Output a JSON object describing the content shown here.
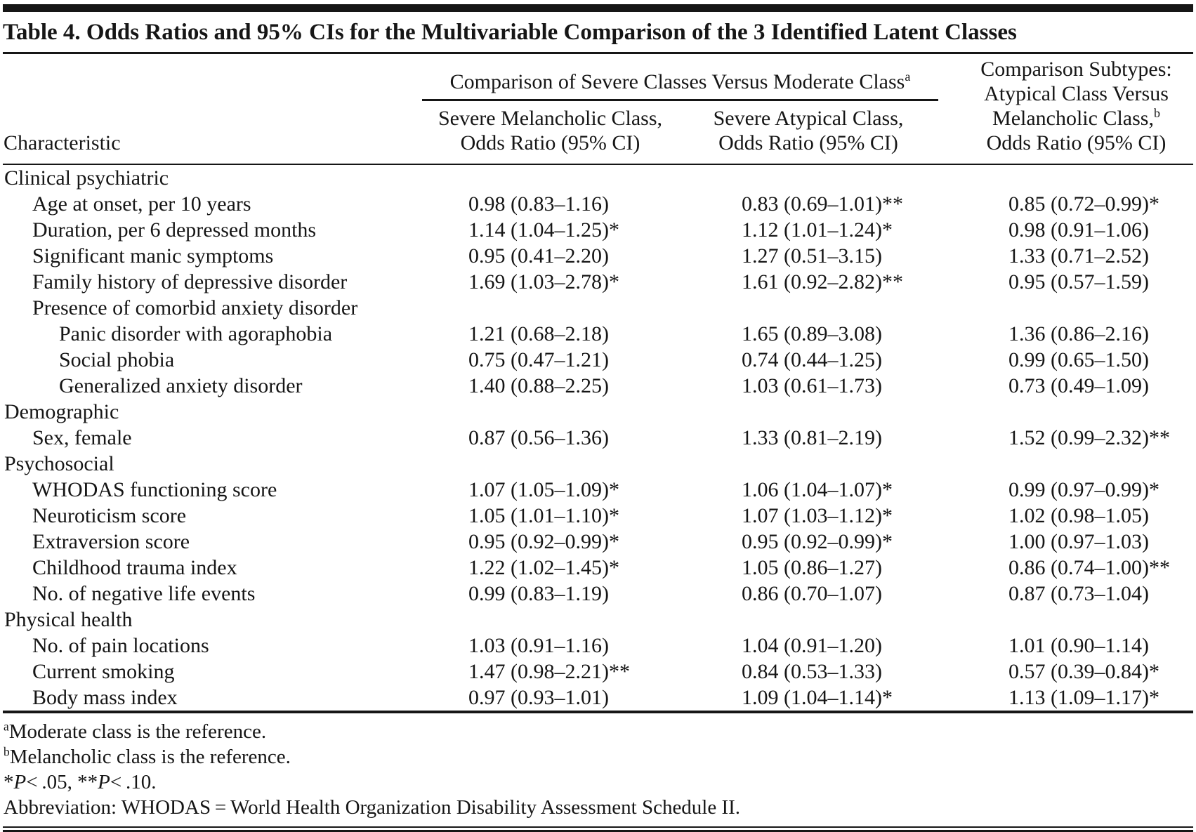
{
  "table": {
    "title": "Table 4. Odds Ratios and 95% CIs for the Multivariable Comparison of the 3 Identified Latent Classes",
    "columns": {
      "characteristic": "Characteristic",
      "span_header": {
        "text": "Comparison of Severe Classes Versus Moderate Class",
        "sup": "a"
      },
      "col2": {
        "line1": "Severe Melancholic Class,",
        "line2": "Odds Ratio (95% CI)"
      },
      "col3": {
        "line1": "Severe Atypical Class,",
        "line2": "Odds Ratio (95% CI)"
      },
      "col4": {
        "line1": "Comparison Subtypes:",
        "line2": "Atypical Class Versus",
        "line3": "Melancholic Class,",
        "line3_sup": "b",
        "line4": "Odds Ratio (95% CI)"
      }
    },
    "rows": [
      {
        "label": "Clinical psychiatric",
        "indent": 0,
        "v1": "",
        "v2": "",
        "v3": ""
      },
      {
        "label": "Age at onset, per 10 years",
        "indent": 1,
        "v1": "0.98 (0.83–1.16)",
        "v2": "0.83 (0.69–1.01)**",
        "v3": "0.85 (0.72–0.99)*"
      },
      {
        "label": "Duration, per 6 depressed months",
        "indent": 1,
        "v1": "1.14 (1.04–1.25)*",
        "v2": "1.12 (1.01–1.24)*",
        "v3": "0.98 (0.91–1.06)"
      },
      {
        "label": "Significant manic symptoms",
        "indent": 1,
        "v1": "0.95 (0.41–2.20)",
        "v2": "1.27 (0.51–3.15)",
        "v3": "1.33 (0.71–2.52)"
      },
      {
        "label": "Family history of depressive disorder",
        "indent": 1,
        "v1": "1.69 (1.03–2.78)*",
        "v2": "1.61 (0.92–2.82)**",
        "v3": "0.95 (0.57–1.59)"
      },
      {
        "label": "Presence of comorbid anxiety disorder",
        "indent": 1,
        "v1": "",
        "v2": "",
        "v3": ""
      },
      {
        "label": "Panic disorder with agoraphobia",
        "indent": 2,
        "v1": "1.21 (0.68–2.18)",
        "v2": "1.65 (0.89–3.08)",
        "v3": "1.36 (0.86–2.16)"
      },
      {
        "label": "Social phobia",
        "indent": 2,
        "v1": "0.75 (0.47–1.21)",
        "v2": "0.74 (0.44–1.25)",
        "v3": "0.99 (0.65–1.50)"
      },
      {
        "label": "Generalized anxiety disorder",
        "indent": 2,
        "v1": "1.40 (0.88–2.25)",
        "v2": "1.03 (0.61–1.73)",
        "v3": "0.73 (0.49–1.09)"
      },
      {
        "label": "Demographic",
        "indent": 0,
        "v1": "",
        "v2": "",
        "v3": ""
      },
      {
        "label": "Sex, female",
        "indent": 1,
        "v1": "0.87 (0.56–1.36)",
        "v2": "1.33 (0.81–2.19)",
        "v3": "1.52 (0.99–2.32)**"
      },
      {
        "label": "Psychosocial",
        "indent": 0,
        "v1": "",
        "v2": "",
        "v3": ""
      },
      {
        "label": "WHODAS functioning score",
        "indent": 1,
        "v1": "1.07 (1.05–1.09)*",
        "v2": "1.06 (1.04–1.07)*",
        "v3": "0.99 (0.97–0.99)*"
      },
      {
        "label": "Neuroticism score",
        "indent": 1,
        "v1": "1.05 (1.01–1.10)*",
        "v2": "1.07 (1.03–1.12)*",
        "v3": "1.02 (0.98–1.05)"
      },
      {
        "label": "Extraversion score",
        "indent": 1,
        "v1": "0.95 (0.92–0.99)*",
        "v2": "0.95 (0.92–0.99)*",
        "v3": "1.00 (0.97–1.03)"
      },
      {
        "label": "Childhood trauma index",
        "indent": 1,
        "v1": "1.22 (1.02–1.45)*",
        "v2": "1.05 (0.86–1.27)",
        "v3": "0.86 (0.74–1.00)**"
      },
      {
        "label": "No. of negative life events",
        "indent": 1,
        "v1": "0.99 (0.83–1.19)",
        "v2": "0.86 (0.70–1.07)",
        "v3": "0.87 (0.73–1.04)"
      },
      {
        "label": "Physical health",
        "indent": 0,
        "v1": "",
        "v2": "",
        "v3": ""
      },
      {
        "label": "No. of pain locations",
        "indent": 1,
        "v1": "1.03 (0.91–1.16)",
        "v2": "1.04 (0.91–1.20)",
        "v3": "1.01 (0.90–1.14)"
      },
      {
        "label": "Current smoking",
        "indent": 1,
        "v1": "1.47 (0.98–2.21)**",
        "v2": "0.84 (0.53–1.33)",
        "v3": "0.57 (0.39–0.84)*"
      },
      {
        "label": "Body mass index",
        "indent": 1,
        "v1": "0.97 (0.93–1.01)",
        "v2": "1.09 (1.04–1.14)*",
        "v3": "1.13 (1.09–1.17)*"
      }
    ]
  },
  "footnotes": {
    "a": {
      "sup": "a",
      "text": "Moderate class is the reference."
    },
    "b": {
      "sup": "b",
      "text": "Melancholic class is the reference."
    },
    "sig": {
      "parts": [
        "*",
        "P",
        "< .05, **",
        "P",
        "< .10."
      ]
    },
    "abbrev": "Abbreviation: WHODAS = World Health Organization Disability Assessment Schedule II."
  }
}
